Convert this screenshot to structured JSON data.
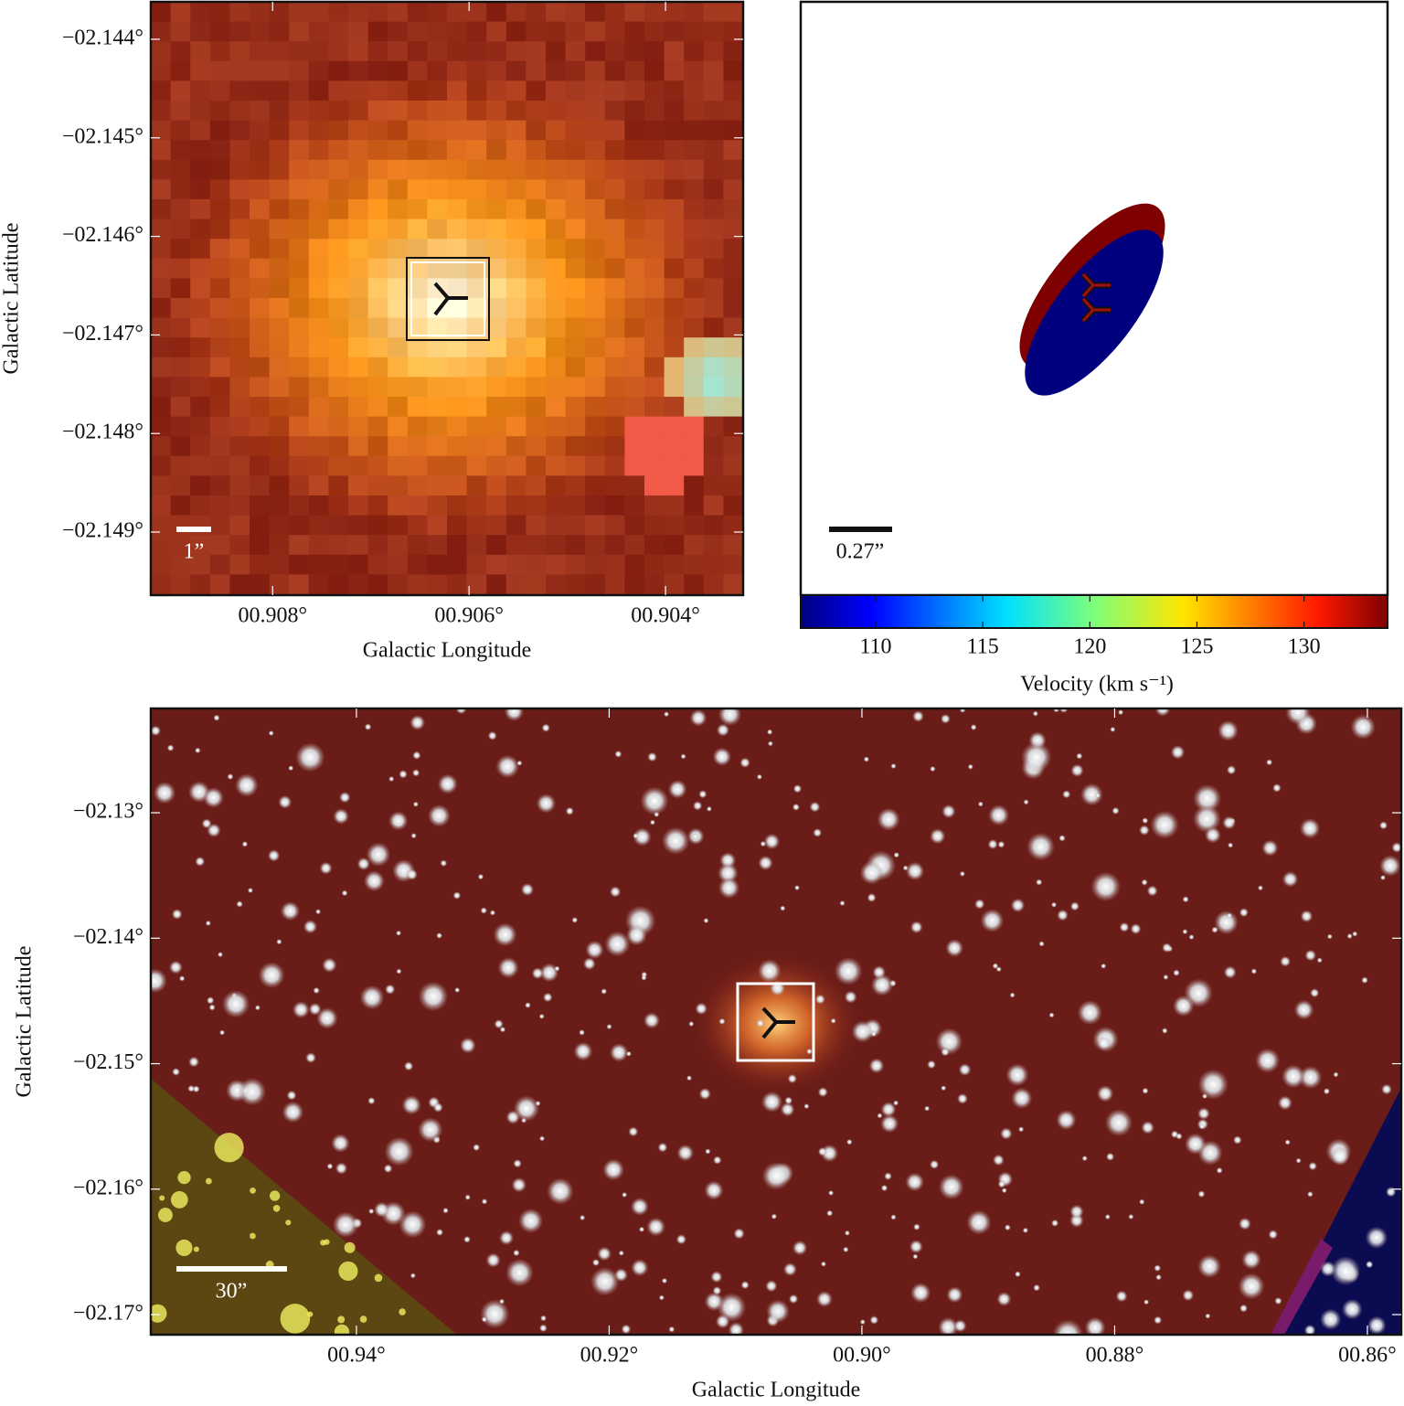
{
  "chart_data": [
    {
      "type": "image",
      "xlabel": "Galactic Longitude",
      "ylabel": "Galactic Latitude",
      "xlim": [
        0.90924,
        0.90321
      ],
      "xticks": [
        {
          "value": 0.908,
          "label": "00.908°"
        },
        {
          "value": 0.906,
          "label": "00.906°"
        },
        {
          "value": 0.904,
          "label": "00.904°"
        }
      ],
      "ylim": [
        -2.14964,
        -2.14362
      ],
      "yticks": [
        {
          "value": -2.144,
          "label": "−02.144°"
        },
        {
          "value": -2.145,
          "label": "−02.145°"
        },
        {
          "value": -2.146,
          "label": "−02.146°"
        },
        {
          "value": -2.147,
          "label": "−02.147°"
        },
        {
          "value": -2.148,
          "label": "−02.148°"
        },
        {
          "value": -2.149,
          "label": "−02.149°"
        }
      ],
      "scale_bar": "1”"
    },
    {
      "type": "ellipse",
      "colorbar_label": "Velocity (km s⁻¹)",
      "clim": [
        106.5,
        133.9
      ],
      "cticks": [
        110,
        115,
        120,
        125,
        130
      ],
      "scale_bar": "0.27”"
    },
    {
      "type": "image",
      "xlabel": "Galactic Longitude",
      "ylabel": "Galactic Latitude",
      "xlim": [
        0.95627,
        0.85732
      ],
      "xticks": [
        {
          "value": 0.94,
          "label": "00.94°"
        },
        {
          "value": 0.92,
          "label": "00.92°"
        },
        {
          "value": 0.9,
          "label": "00.90°"
        },
        {
          "value": 0.88,
          "label": "00.88°"
        },
        {
          "value": 0.86,
          "label": "00.86°"
        }
      ],
      "ylim": [
        -2.1716,
        -2.12169
      ],
      "yticks": [
        {
          "value": -2.13,
          "label": "−02.13°"
        },
        {
          "value": -2.14,
          "label": "−02.14°"
        },
        {
          "value": -2.15,
          "label": "−02.15°"
        },
        {
          "value": -2.16,
          "label": "−02.16°"
        },
        {
          "value": -2.17,
          "label": "−02.17°"
        }
      ],
      "scale_bar": "30”"
    }
  ]
}
